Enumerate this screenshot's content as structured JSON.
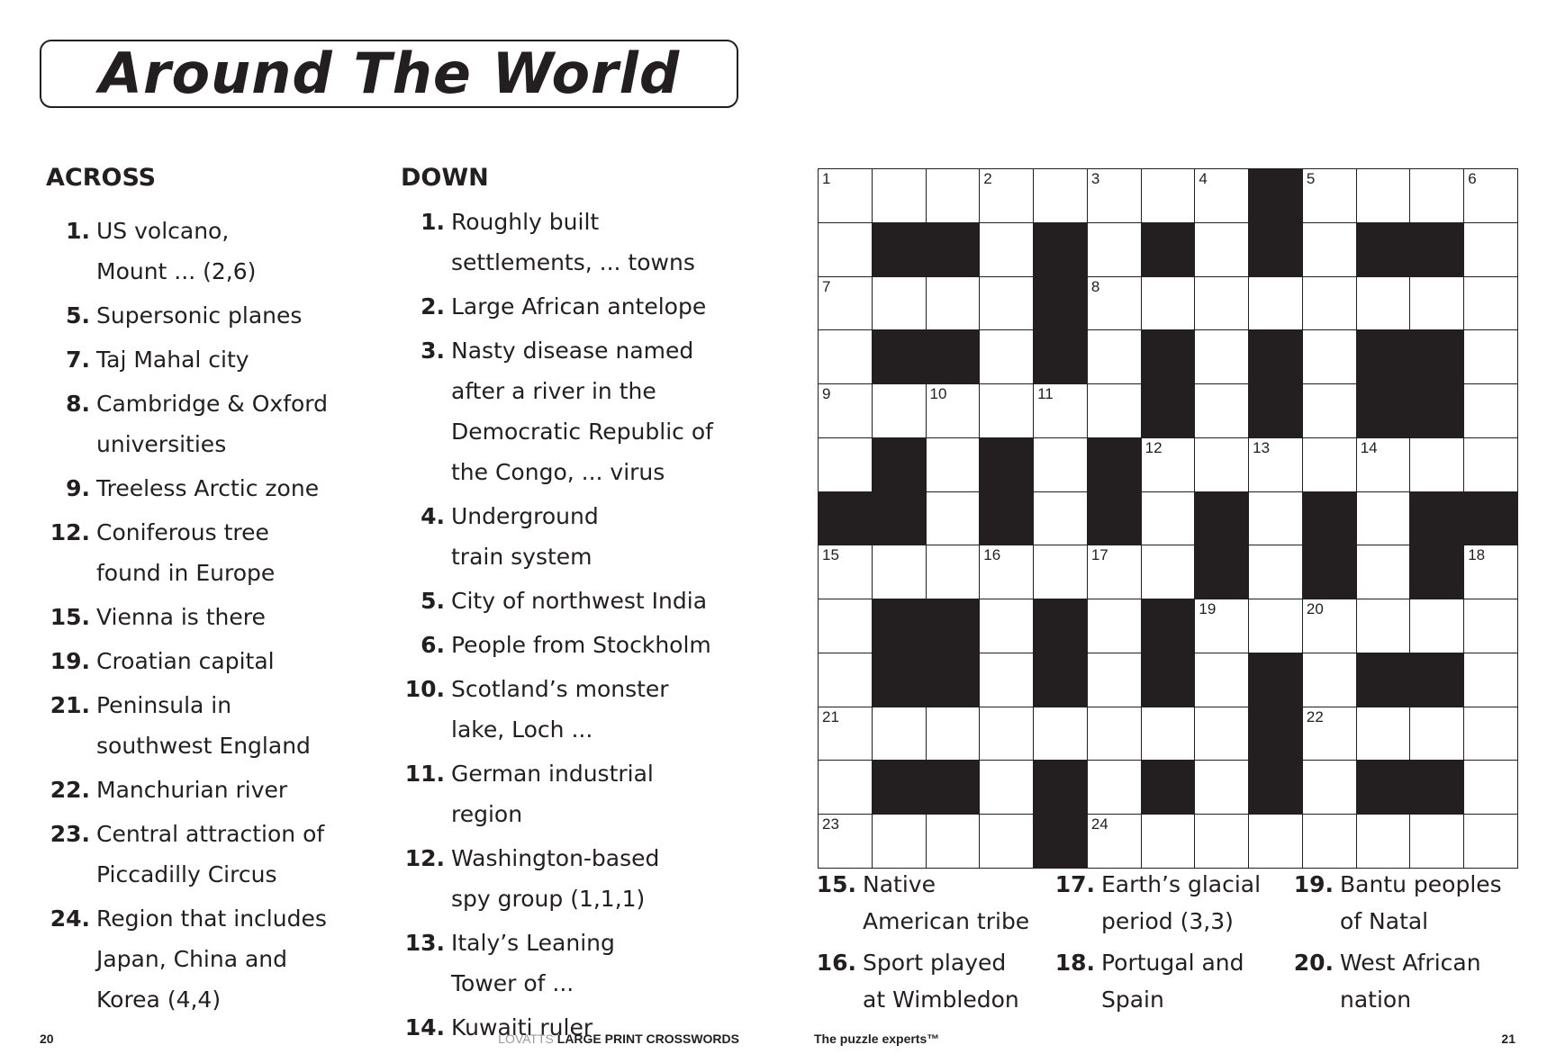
{
  "title": "Around The World",
  "across": {
    "heading": "ACROSS",
    "clues": [
      {
        "num": "1.",
        "lines": [
          "US volcano,",
          "Mount ... (2,6)"
        ]
      },
      {
        "num": "5.",
        "lines": [
          "Supersonic planes"
        ]
      },
      {
        "num": "7.",
        "lines": [
          "Taj Mahal city"
        ]
      },
      {
        "num": "8.",
        "lines": [
          "Cambridge & Oxford",
          "universities"
        ]
      },
      {
        "num": "9.",
        "lines": [
          "Treeless Arctic zone"
        ]
      },
      {
        "num": "12.",
        "lines": [
          "Coniferous tree",
          "found in Europe"
        ]
      },
      {
        "num": "15.",
        "lines": [
          "Vienna is there"
        ]
      },
      {
        "num": "19.",
        "lines": [
          "Croatian capital"
        ]
      },
      {
        "num": "21.",
        "lines": [
          "Peninsula in",
          "southwest England"
        ]
      },
      {
        "num": "22.",
        "lines": [
          "Manchurian river"
        ]
      },
      {
        "num": "23.",
        "lines": [
          "Central attraction of",
          "Piccadilly Circus"
        ]
      },
      {
        "num": "24.",
        "lines": [
          "Region that includes",
          "Japan, China and",
          "Korea (4,4)"
        ]
      }
    ]
  },
  "down": {
    "heading": "DOWN",
    "clues": [
      {
        "num": "1.",
        "lines": [
          "Roughly built",
          "settlements, ... towns"
        ]
      },
      {
        "num": "2.",
        "lines": [
          "Large African antelope"
        ]
      },
      {
        "num": "3.",
        "lines": [
          "Nasty disease named",
          "after a river in the",
          "Democratic Republic of",
          "the Congo, ... virus"
        ]
      },
      {
        "num": "4.",
        "lines": [
          "Underground",
          "train system"
        ]
      },
      {
        "num": "5.",
        "lines": [
          "City of northwest India"
        ]
      },
      {
        "num": "6.",
        "lines": [
          "People from Stockholm"
        ]
      },
      {
        "num": "10.",
        "lines": [
          "Scotland’s monster",
          "lake, Loch ..."
        ]
      },
      {
        "num": "11.",
        "lines": [
          "German industrial",
          "region"
        ]
      },
      {
        "num": "12.",
        "lines": [
          "Washington-based",
          "spy group (1,1,1)"
        ]
      },
      {
        "num": "13.",
        "lines": [
          "Italy’s Leaning",
          "Tower of ..."
        ]
      },
      {
        "num": "14.",
        "lines": [
          "Kuwaiti ruler"
        ]
      }
    ],
    "continued": [
      [
        {
          "num": "15.",
          "lines": [
            "Native",
            "American tribe"
          ]
        },
        {
          "num": "16.",
          "lines": [
            "Sport played",
            "at Wimbledon"
          ]
        }
      ],
      [
        {
          "num": "17.",
          "lines": [
            "Earth’s glacial",
            "period (3,3)"
          ]
        },
        {
          "num": "18.",
          "lines": [
            "Portugal and",
            "Spain"
          ]
        }
      ],
      [
        {
          "num": "19.",
          "lines": [
            "Bantu peoples",
            "of Natal"
          ]
        },
        {
          "num": "20.",
          "lines": [
            "West African",
            "nation"
          ]
        }
      ]
    ]
  },
  "grid": {
    "rows": [
      "........#....",
      ".##.#.#.#.##.",
      "....#........",
      ".##.#.#.#.##.",
      "......#.#.##.",
      ".#.#.#.......",
      "##.#.#.#.#.##",
      ".......#.#.#.",
      ".##.#.#......",
      ".##.#.#.#.##.",
      "........#....",
      ".##.#.#.#.##.",
      "....#........"
    ],
    "numbers": {
      "0,0": "1",
      "0,3": "2",
      "0,5": "3",
      "0,7": "4",
      "0,9": "5",
      "0,12": "6",
      "2,0": "7",
      "2,5": "8",
      "4,0": "9",
      "4,2": "10",
      "4,4": "11",
      "5,6": "12",
      "5,8": "13",
      "5,10": "14",
      "7,0": "15",
      "7,3": "16",
      "7,5": "17",
      "7,12": "18",
      "8,7": "19",
      "8,9": "20",
      "10,0": "21",
      "10,9": "22",
      "12,0": "23",
      "12,5": "24"
    },
    "colors": {
      "black": "#231f20",
      "white": "#ffffff"
    }
  },
  "footer": {
    "left_page": "20",
    "brand_grey": "LOVATTS",
    "brand_bold": "LARGE PRINT CROSSWORDS",
    "tagline": "The puzzle experts™",
    "right_page": "21"
  }
}
